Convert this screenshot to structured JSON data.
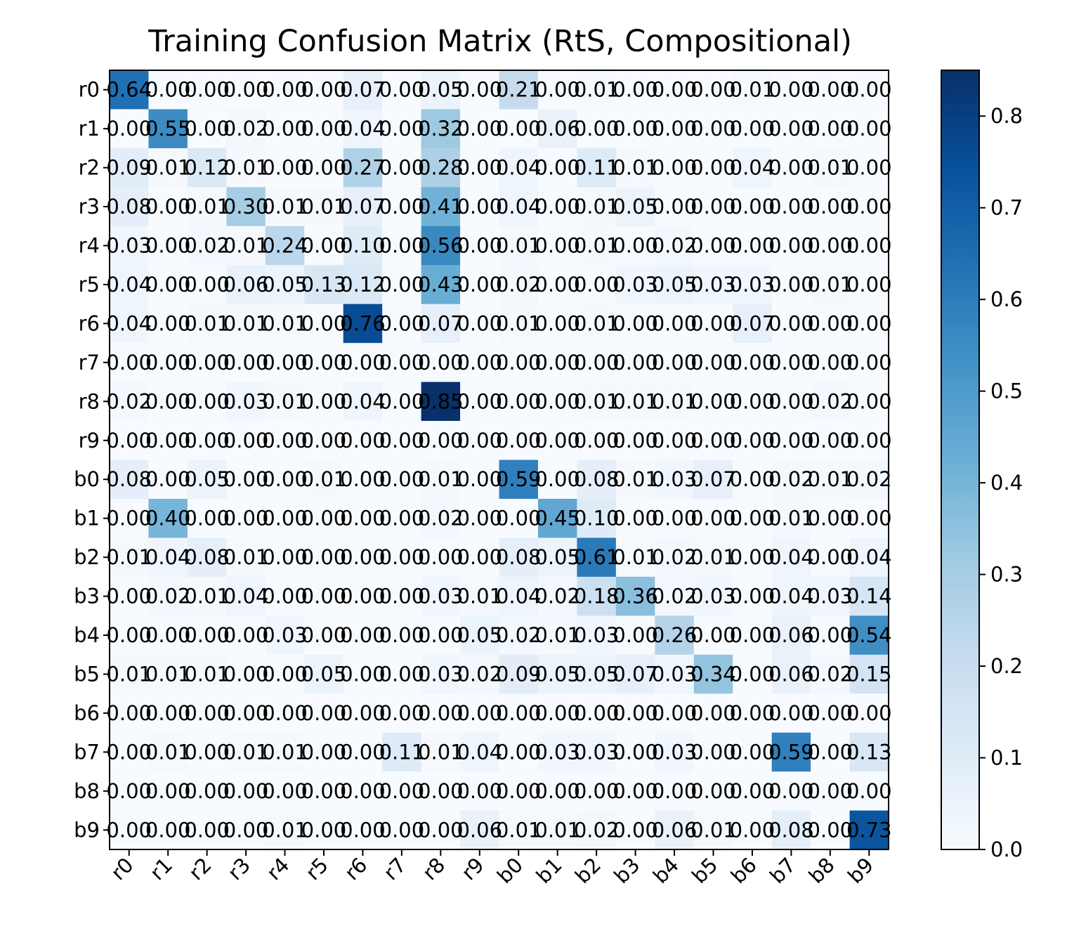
{
  "chart_data": {
    "type": "heatmap",
    "title": "Training Confusion Matrix (RtS, Compositional)",
    "xlabel": "",
    "ylabel": "",
    "x_labels": [
      "r0",
      "r1",
      "r2",
      "r3",
      "r4",
      "r5",
      "r6",
      "r7",
      "r8",
      "r9",
      "b0",
      "b1",
      "b2",
      "b3",
      "b4",
      "b5",
      "b6",
      "b7",
      "b8",
      "b9"
    ],
    "y_labels": [
      "r0",
      "r1",
      "r2",
      "r3",
      "r4",
      "r5",
      "r6",
      "r7",
      "r8",
      "r9",
      "b0",
      "b1",
      "b2",
      "b3",
      "b4",
      "b5",
      "b6",
      "b7",
      "b8",
      "b9"
    ],
    "values": [
      [
        0.64,
        0.0,
        0.0,
        0.0,
        0.0,
        0.0,
        0.07,
        0.0,
        0.05,
        0.0,
        0.21,
        0.0,
        0.01,
        0.0,
        0.0,
        0.0,
        0.01,
        0.0,
        0.0,
        0.0
      ],
      [
        0.0,
        0.55,
        0.0,
        0.02,
        0.0,
        0.0,
        0.04,
        0.0,
        0.32,
        0.0,
        0.0,
        0.06,
        0.0,
        0.0,
        0.0,
        0.0,
        0.0,
        0.0,
        0.0,
        0.0
      ],
      [
        0.09,
        0.01,
        0.12,
        0.01,
        0.0,
        0.0,
        0.27,
        0.0,
        0.28,
        0.0,
        0.04,
        0.0,
        0.11,
        0.01,
        0.0,
        0.0,
        0.04,
        0.0,
        0.01,
        0.0
      ],
      [
        0.08,
        0.0,
        0.01,
        0.3,
        0.01,
        0.01,
        0.07,
        0.0,
        0.41,
        0.0,
        0.04,
        0.0,
        0.01,
        0.05,
        0.0,
        0.0,
        0.0,
        0.0,
        0.0,
        0.0
      ],
      [
        0.03,
        0.0,
        0.02,
        0.01,
        0.24,
        0.0,
        0.1,
        0.0,
        0.56,
        0.0,
        0.01,
        0.0,
        0.01,
        0.0,
        0.02,
        0.0,
        0.0,
        0.0,
        0.0,
        0.0
      ],
      [
        0.04,
        0.0,
        0.0,
        0.06,
        0.05,
        0.13,
        0.12,
        0.0,
        0.43,
        0.0,
        0.02,
        0.0,
        0.0,
        0.03,
        0.05,
        0.03,
        0.03,
        0.0,
        0.01,
        0.0
      ],
      [
        0.04,
        0.0,
        0.01,
        0.01,
        0.01,
        0.0,
        0.76,
        0.0,
        0.07,
        0.0,
        0.01,
        0.0,
        0.01,
        0.0,
        0.0,
        0.0,
        0.07,
        0.0,
        0.0,
        0.0
      ],
      [
        0.0,
        0.0,
        0.0,
        0.0,
        0.0,
        0.0,
        0.0,
        0.0,
        0.0,
        0.0,
        0.0,
        0.0,
        0.0,
        0.0,
        0.0,
        0.0,
        0.0,
        0.0,
        0.0,
        0.0
      ],
      [
        0.02,
        0.0,
        0.0,
        0.03,
        0.01,
        0.0,
        0.04,
        0.0,
        0.85,
        0.0,
        0.0,
        0.0,
        0.01,
        0.01,
        0.01,
        0.0,
        0.0,
        0.0,
        0.02,
        0.0
      ],
      [
        0.0,
        0.0,
        0.0,
        0.0,
        0.0,
        0.0,
        0.0,
        0.0,
        0.0,
        0.0,
        0.0,
        0.0,
        0.0,
        0.0,
        0.0,
        0.0,
        0.0,
        0.0,
        0.0,
        0.0
      ],
      [
        0.08,
        0.0,
        0.05,
        0.0,
        0.0,
        0.01,
        0.0,
        0.0,
        0.01,
        0.0,
        0.59,
        0.0,
        0.08,
        0.01,
        0.03,
        0.07,
        0.0,
        0.02,
        0.01,
        0.02
      ],
      [
        0.0,
        0.4,
        0.0,
        0.0,
        0.0,
        0.0,
        0.0,
        0.0,
        0.02,
        0.0,
        0.0,
        0.45,
        0.1,
        0.0,
        0.0,
        0.0,
        0.0,
        0.01,
        0.0,
        0.0
      ],
      [
        0.01,
        0.04,
        0.08,
        0.01,
        0.0,
        0.0,
        0.0,
        0.0,
        0.0,
        0.0,
        0.08,
        0.05,
        0.61,
        0.01,
        0.02,
        0.01,
        0.0,
        0.04,
        0.0,
        0.04
      ],
      [
        0.0,
        0.02,
        0.01,
        0.04,
        0.0,
        0.0,
        0.0,
        0.0,
        0.03,
        0.01,
        0.04,
        0.02,
        0.18,
        0.36,
        0.02,
        0.03,
        0.0,
        0.04,
        0.03,
        0.14
      ],
      [
        0.0,
        0.0,
        0.0,
        0.0,
        0.03,
        0.0,
        0.0,
        0.0,
        0.0,
        0.05,
        0.02,
        0.01,
        0.03,
        0.0,
        0.26,
        0.0,
        0.0,
        0.06,
        0.0,
        0.54
      ],
      [
        0.01,
        0.01,
        0.01,
        0.0,
        0.0,
        0.05,
        0.0,
        0.0,
        0.03,
        0.02,
        0.09,
        0.05,
        0.05,
        0.07,
        0.03,
        0.34,
        0.0,
        0.06,
        0.02,
        0.15
      ],
      [
        0.0,
        0.0,
        0.0,
        0.0,
        0.0,
        0.0,
        0.0,
        0.0,
        0.0,
        0.0,
        0.0,
        0.0,
        0.0,
        0.0,
        0.0,
        0.0,
        0.0,
        0.0,
        0.0,
        0.0
      ],
      [
        0.0,
        0.01,
        0.0,
        0.01,
        0.01,
        0.0,
        0.0,
        0.11,
        0.01,
        0.04,
        0.0,
        0.03,
        0.03,
        0.0,
        0.03,
        0.0,
        0.0,
        0.59,
        0.0,
        0.13
      ],
      [
        0.0,
        0.0,
        0.0,
        0.0,
        0.0,
        0.0,
        0.0,
        0.0,
        0.0,
        0.0,
        0.0,
        0.0,
        0.0,
        0.0,
        0.0,
        0.0,
        0.0,
        0.0,
        0.0,
        0.0
      ],
      [
        0.0,
        0.0,
        0.0,
        0.0,
        0.01,
        0.0,
        0.0,
        0.0,
        0.0,
        0.06,
        0.01,
        0.01,
        0.02,
        0.0,
        0.06,
        0.01,
        0.0,
        0.08,
        0.0,
        0.73
      ]
    ],
    "colormap": "Blues",
    "colorbar": {
      "range": [
        0.0,
        0.85
      ],
      "ticks": [
        0.0,
        0.1,
        0.2,
        0.3,
        0.4,
        0.5,
        0.6,
        0.7,
        0.8
      ],
      "tick_labels": [
        "0.0",
        "0.1",
        "0.2",
        "0.3",
        "0.4",
        "0.5",
        "0.6",
        "0.7",
        "0.8"
      ]
    },
    "cell_value_format": "2 decimals"
  }
}
